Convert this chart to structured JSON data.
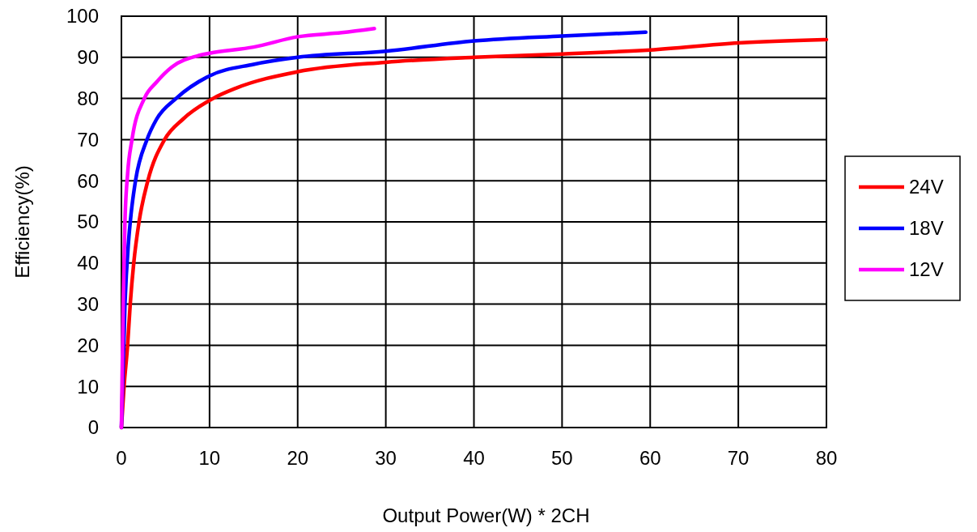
{
  "chart_data": {
    "type": "line",
    "xlabel": "Output Power(W) * 2CH",
    "ylabel": "Efficiency(%)",
    "xlim": [
      0,
      80
    ],
    "ylim": [
      0,
      100
    ],
    "xticks": [
      0,
      10,
      20,
      30,
      40,
      50,
      60,
      70,
      80
    ],
    "yticks": [
      0,
      10,
      20,
      30,
      40,
      50,
      60,
      70,
      80,
      90,
      100
    ],
    "grid": true,
    "legend": "right",
    "marker": "none",
    "line_style": "solid",
    "series": [
      {
        "name": "24V",
        "color": "#ff0000",
        "x": [
          0,
          0.3,
          0.7,
          1,
          1.4,
          2,
          3,
          4.9,
          7,
          10.4,
          13,
          20,
          30,
          40,
          50,
          60,
          70,
          80
        ],
        "values": [
          0,
          10,
          20,
          30,
          40,
          50,
          60,
          70,
          75,
          80,
          82.5,
          86.5,
          88.8,
          90,
          90.8,
          91.8,
          93.5,
          94.3
        ]
      },
      {
        "name": "18V",
        "color": "#0000ff",
        "x": [
          0,
          0.4,
          0.8,
          1.1,
          1.6,
          2.9,
          4,
          6.2,
          10,
          15,
          20,
          30,
          40,
          50,
          59.5
        ],
        "values": [
          0,
          30,
          45,
          52,
          60,
          70,
          75,
          80,
          85.5,
          88.3,
          90,
          91.5,
          94,
          95.2,
          96.1
        ]
      },
      {
        "name": "12V",
        "color": "#ff00ff",
        "x": [
          0,
          0.2,
          0.4,
          0.7,
          1.2,
          2.6,
          4,
          5.7,
          8.9,
          10,
          15,
          20,
          25,
          28.7
        ],
        "values": [
          0,
          30,
          50,
          61.6,
          70,
          80,
          84,
          87.6,
          90.5,
          91,
          92.5,
          95,
          96,
          97
        ]
      }
    ]
  }
}
